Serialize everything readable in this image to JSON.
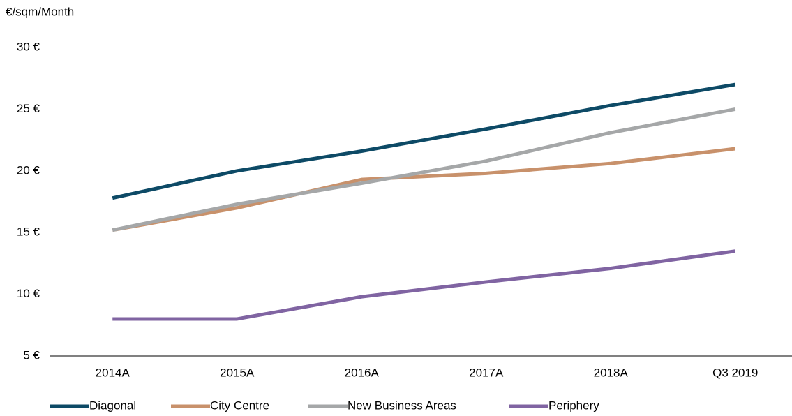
{
  "chart_data": {
    "type": "line",
    "y_axis_label": "€/sqm/Month",
    "categories": [
      "2014A",
      "2015A",
      "2016A",
      "2017A",
      "2018A",
      "Q3 2019"
    ],
    "series": [
      {
        "name": "Diagonal",
        "color": "#0d4a66",
        "values": [
          17.8,
          20,
          21.6,
          23.4,
          25.3,
          27
        ]
      },
      {
        "name": "City Centre",
        "color": "#c8916b",
        "values": [
          15.2,
          17,
          19.3,
          19.8,
          20.6,
          21.8
        ]
      },
      {
        "name": "New Business Areas",
        "color": "#a5a7a8",
        "values": [
          15.2,
          17.3,
          19,
          20.8,
          23.1,
          25
        ]
      },
      {
        "name": "Periphery",
        "color": "#8064a2",
        "values": [
          8,
          8,
          9.8,
          11,
          12.1,
          13.5
        ]
      }
    ],
    "ylim": [
      5,
      30
    ],
    "yticks": [
      {
        "value": 5,
        "label": "5 €"
      },
      {
        "value": 10,
        "label": "10 €"
      },
      {
        "value": 15,
        "label": "15 €"
      },
      {
        "value": 20,
        "label": "20 €"
      },
      {
        "value": 25,
        "label": "25 €"
      },
      {
        "value": 30,
        "label": "30 €"
      }
    ],
    "grid": false,
    "legend": "bottom"
  }
}
